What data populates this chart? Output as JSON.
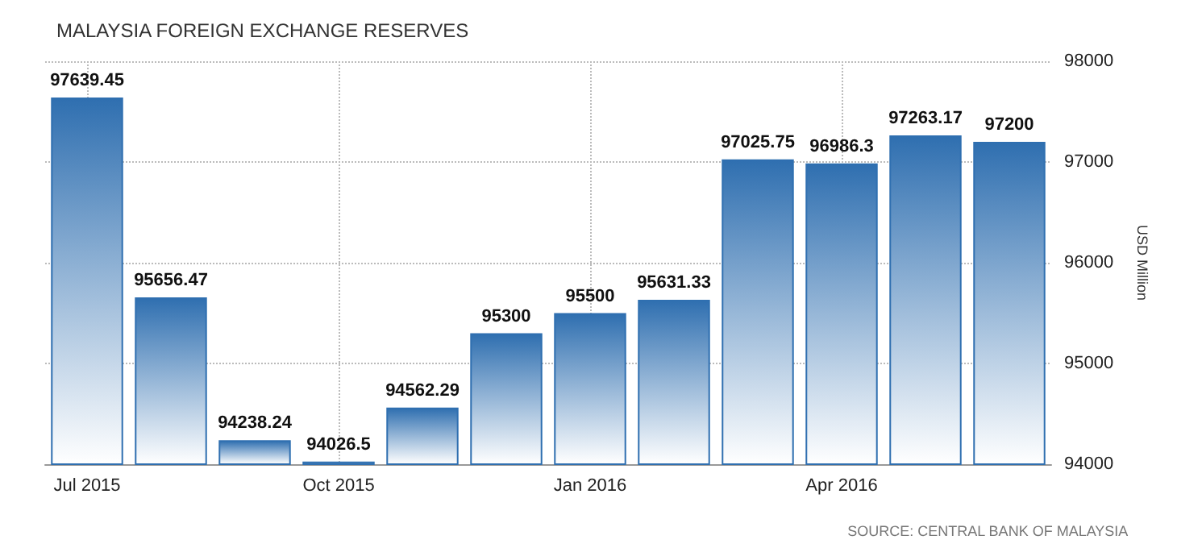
{
  "chart_data": {
    "type": "bar",
    "title": "MALAYSIA FOREIGN EXCHANGE RESERVES",
    "ylabel": "USD Million",
    "categories": [
      "Jul 2015",
      null,
      null,
      "Oct 2015",
      null,
      null,
      "Jan 2016",
      null,
      null,
      "Apr 2016",
      null,
      null
    ],
    "values": [
      97639.45,
      95656.47,
      94238.24,
      94026.5,
      94562.29,
      95300,
      95500,
      95631.33,
      97025.75,
      96986.3,
      97263.17,
      97200
    ],
    "color": "#2f6fb0",
    "ylim": [
      94000,
      98000
    ],
    "yticks": [
      94000,
      95000,
      96000,
      97000,
      98000
    ],
    "grid": true,
    "data_labels": true,
    "annotations": [
      "SOURCE: CENTRAL BANK OF MALAYSIA"
    ]
  }
}
